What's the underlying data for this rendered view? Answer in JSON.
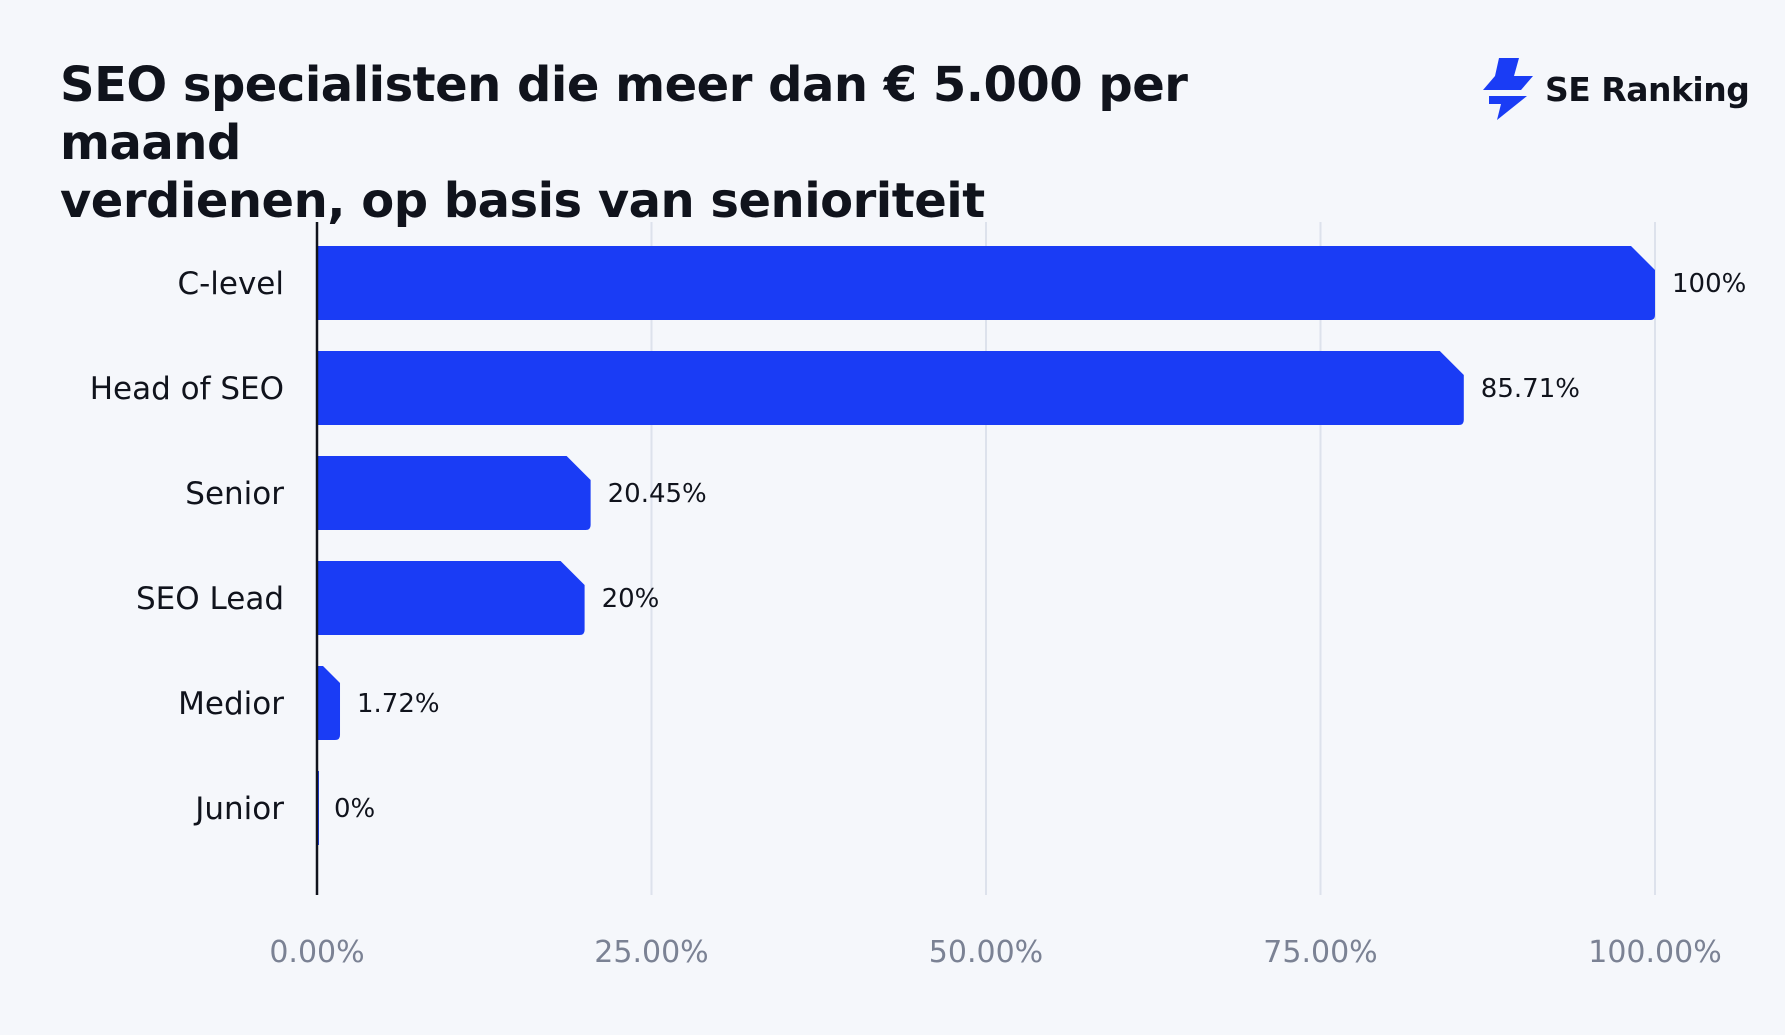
{
  "title": {
    "line1": "SEO specialisten die meer dan € 5.000 per maand",
    "line2": "verdienen, op basis van senioriteit"
  },
  "brand": {
    "name": "SE Ranking",
    "icon": "lightning-bolt-logo",
    "color": "#1a3cf5"
  },
  "chart_data": {
    "type": "bar",
    "orientation": "horizontal",
    "title": "SEO specialisten die meer dan € 5.000 per maand verdienen, op basis van senioriteit",
    "xlabel": "",
    "ylabel": "",
    "categories": [
      "C-level",
      "Head of SEO",
      "Senior",
      "SEO Lead",
      "Medior",
      "Junior"
    ],
    "values": [
      100,
      85.71,
      20.45,
      20,
      1.72,
      0
    ],
    "value_labels": [
      "100%",
      "85.71%",
      "20.45%",
      "20%",
      "1.72%",
      "0%"
    ],
    "xlim": [
      0,
      100
    ],
    "x_ticks": [
      0,
      25,
      50,
      75,
      100
    ],
    "x_tick_labels": [
      "0.00%",
      "25.00%",
      "50.00%",
      "75.00%",
      "100.00%"
    ],
    "grid": "vertical",
    "legend": "none",
    "colors": {
      "bar": "#1a3cf5",
      "grid": "#dde2ec",
      "axis": "#10131c",
      "tick_label": "#7b8294",
      "background": "#f5f7fb"
    }
  }
}
